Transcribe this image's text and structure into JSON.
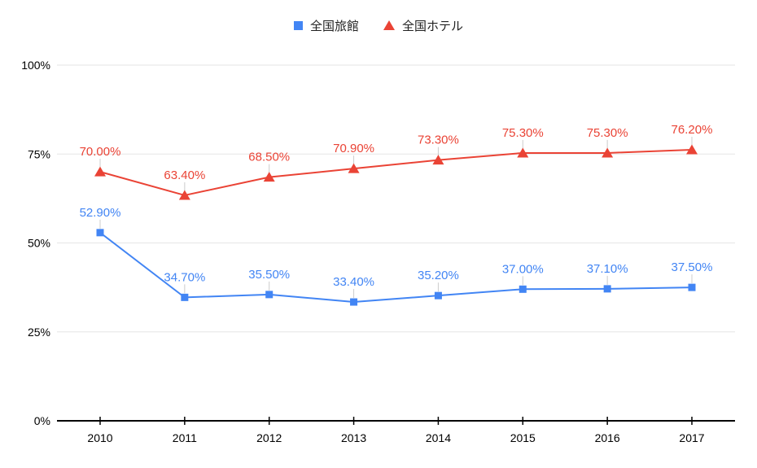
{
  "page": {
    "background": "#ffffff"
  },
  "legend": {
    "items": [
      {
        "label": "全国旅館",
        "slug": "zenkoku-ryokan",
        "marker": "square",
        "color": "#4285F4"
      },
      {
        "label": "全国ホテル",
        "slug": "zenkoku-hotel",
        "marker": "triangle",
        "color": "#EA4335"
      }
    ]
  },
  "chart_data": {
    "type": "line",
    "title": "",
    "xlabel": "",
    "ylabel": "",
    "x": [
      "2010",
      "2011",
      "2012",
      "2013",
      "2014",
      "2015",
      "2016",
      "2017"
    ],
    "series": [
      {
        "name": "全国旅館",
        "slug": "zenkoku-ryokan",
        "color": "#4285F4",
        "marker": "square",
        "values": [
          52.9,
          34.7,
          35.5,
          33.4,
          35.2,
          37.0,
          37.1,
          37.5
        ],
        "data_labels": [
          "52.90%",
          "34.70%",
          "35.50%",
          "33.40%",
          "35.20%",
          "37.00%",
          "37.10%",
          "37.50%"
        ]
      },
      {
        "name": "全国ホテル",
        "slug": "zenkoku-hotel",
        "color": "#EA4335",
        "marker": "triangle",
        "values": [
          70.0,
          63.4,
          68.5,
          70.9,
          73.3,
          75.3,
          75.3,
          76.2
        ],
        "data_labels": [
          "70.00%",
          "63.40%",
          "68.50%",
          "70.90%",
          "73.30%",
          "75.30%",
          "75.30%",
          "76.20%"
        ]
      }
    ],
    "ylim": [
      0,
      100
    ],
    "y_ticks": [
      {
        "value": 0,
        "label": "0%"
      },
      {
        "value": 25,
        "label": "25%"
      },
      {
        "value": 50,
        "label": "50%"
      },
      {
        "value": 75,
        "label": "75%"
      },
      {
        "value": 100,
        "label": "100%"
      }
    ],
    "grid": true,
    "legend_position": "top",
    "colors": {
      "grid": "#e6e6e6",
      "axis": "#000000",
      "axis_text": "#000000",
      "leader_line": "#cccccc"
    }
  }
}
